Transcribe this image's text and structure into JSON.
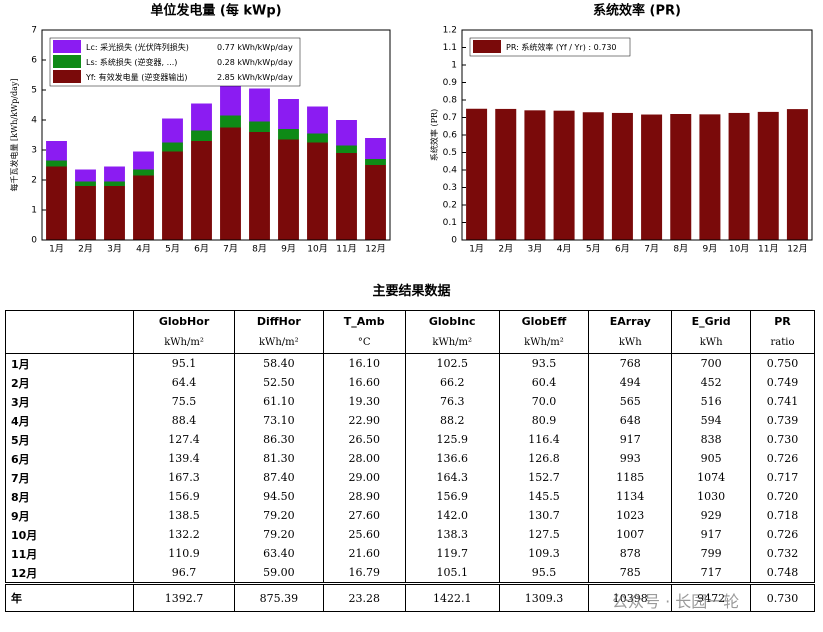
{
  "chart_data": [
    {
      "type": "stacked-bar",
      "title": "单位发电量 (每 kWp)",
      "y_label": "每千瓦发电量 [kWh/kWp/day]",
      "categories": [
        "1月",
        "2月",
        "3月",
        "4月",
        "5月",
        "6月",
        "7月",
        "8月",
        "9月",
        "10月",
        "11月",
        "12月"
      ],
      "ylim": [
        0,
        7
      ],
      "yticks": [
        0,
        1,
        2,
        3,
        4,
        5,
        6,
        7
      ],
      "series": [
        {
          "name": "Lc: 采光损失 (光伏阵列损失)",
          "total_label": "0.77 kWh/kWp/day",
          "color": "#8b1cf2",
          "values": [
            0.65,
            0.4,
            0.5,
            0.6,
            0.8,
            0.9,
            1.15,
            1.1,
            1.0,
            0.9,
            0.85,
            0.7
          ]
        },
        {
          "name": "Ls: 系统损失 (逆变器, ...)",
          "total_label": "0.28 kWh/kWp/day",
          "color": "#0e8a16",
          "values": [
            0.2,
            0.15,
            0.15,
            0.2,
            0.3,
            0.35,
            0.4,
            0.35,
            0.35,
            0.3,
            0.25,
            0.2
          ]
        },
        {
          "name": "Yf: 有效发电量 (逆变器输出)",
          "total_label": "2.85 kWh/kWp/day",
          "color": "#7a0a0a",
          "values": [
            2.45,
            1.8,
            1.8,
            2.15,
            2.95,
            3.3,
            3.75,
            3.6,
            3.35,
            3.25,
            2.9,
            2.5
          ]
        }
      ]
    },
    {
      "type": "bar",
      "title": "系统效率 (PR)",
      "y_label": "系统效率 (PR)",
      "categories": [
        "1月",
        "2月",
        "3月",
        "4月",
        "5月",
        "6月",
        "7月",
        "8月",
        "9月",
        "10月",
        "11月",
        "12月"
      ],
      "ylim": [
        0,
        1.2
      ],
      "yticks": [
        0,
        0.1,
        0.2,
        0.3,
        0.4,
        0.5,
        0.6,
        0.7,
        0.8,
        0.9,
        1,
        1.1,
        1.2
      ],
      "series": [
        {
          "name": "PR: 系统效率 (Yf / Yr) : 0.730",
          "color": "#7a0a0a",
          "values": [
            0.75,
            0.749,
            0.741,
            0.739,
            0.73,
            0.726,
            0.717,
            0.72,
            0.718,
            0.726,
            0.732,
            0.748
          ]
        }
      ]
    }
  ],
  "table": {
    "title": "主要结果数据",
    "columns": [
      {
        "name": "GlobHor",
        "unit": "kWh/m²"
      },
      {
        "name": "DiffHor",
        "unit": "kWh/m²"
      },
      {
        "name": "T_Amb",
        "unit": "°C"
      },
      {
        "name": "GlobInc",
        "unit": "kWh/m²"
      },
      {
        "name": "GlobEff",
        "unit": "kWh/m²"
      },
      {
        "name": "EArray",
        "unit": "kWh"
      },
      {
        "name": "E_Grid",
        "unit": "kWh"
      },
      {
        "name": "PR",
        "unit": "ratio"
      }
    ],
    "rows": [
      [
        "1月",
        "95.1",
        "58.40",
        "16.10",
        "102.5",
        "93.5",
        "768",
        "700",
        "0.750"
      ],
      [
        "2月",
        "64.4",
        "52.50",
        "16.60",
        "66.2",
        "60.4",
        "494",
        "452",
        "0.749"
      ],
      [
        "3月",
        "75.5",
        "61.10",
        "19.30",
        "76.3",
        "70.0",
        "565",
        "516",
        "0.741"
      ],
      [
        "4月",
        "88.4",
        "73.10",
        "22.90",
        "88.2",
        "80.9",
        "648",
        "594",
        "0.739"
      ],
      [
        "5月",
        "127.4",
        "86.30",
        "26.50",
        "125.9",
        "116.4",
        "917",
        "838",
        "0.730"
      ],
      [
        "6月",
        "139.4",
        "81.30",
        "28.00",
        "136.6",
        "126.8",
        "993",
        "905",
        "0.726"
      ],
      [
        "7月",
        "167.3",
        "87.40",
        "29.00",
        "164.3",
        "152.7",
        "1185",
        "1074",
        "0.717"
      ],
      [
        "8月",
        "156.9",
        "94.50",
        "28.90",
        "156.9",
        "145.5",
        "1134",
        "1030",
        "0.720"
      ],
      [
        "9月",
        "138.5",
        "79.20",
        "27.60",
        "142.0",
        "130.7",
        "1023",
        "929",
        "0.718"
      ],
      [
        "10月",
        "132.2",
        "79.20",
        "25.60",
        "138.3",
        "127.5",
        "1007",
        "917",
        "0.726"
      ],
      [
        "11月",
        "110.9",
        "63.40",
        "21.60",
        "119.7",
        "109.3",
        "878",
        "799",
        "0.732"
      ],
      [
        "12月",
        "96.7",
        "59.00",
        "16.79",
        "105.1",
        "95.5",
        "785",
        "717",
        "0.748"
      ]
    ],
    "total": [
      "年",
      "1392.7",
      "875.39",
      "23.28",
      "1422.1",
      "1309.3",
      "10398",
      "9472",
      "0.730"
    ]
  },
  "watermark": "公众号 · 长园一轮"
}
